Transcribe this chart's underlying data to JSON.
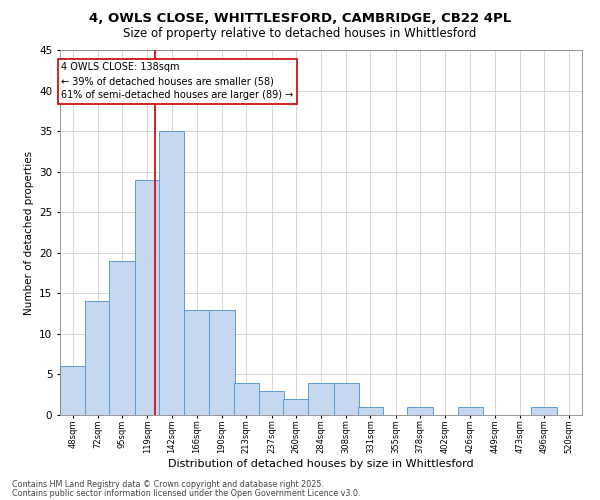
{
  "title1": "4, OWLS CLOSE, WHITTLESFORD, CAMBRIDGE, CB22 4PL",
  "title2": "Size of property relative to detached houses in Whittlesford",
  "xlabel": "Distribution of detached houses by size in Whittlesford",
  "ylabel": "Number of detached properties",
  "footnote1": "Contains HM Land Registry data © Crown copyright and database right 2025.",
  "footnote2": "Contains public sector information licensed under the Open Government Licence v3.0.",
  "annotation_line1": "4 OWLS CLOSE: 138sqm",
  "annotation_line2": "← 39% of detached houses are smaller (58)",
  "annotation_line3": "61% of semi-detached houses are larger (89) →",
  "property_size": 138,
  "bins": [
    48,
    72,
    95,
    119,
    142,
    166,
    190,
    213,
    237,
    260,
    284,
    308,
    331,
    355,
    378,
    402,
    426,
    449,
    473,
    496,
    520
  ],
  "values": [
    6,
    14,
    19,
    29,
    35,
    13,
    13,
    4,
    3,
    2,
    4,
    4,
    1,
    0,
    1,
    0,
    1,
    0,
    0,
    1,
    0
  ],
  "bar_color": "#c5d8f0",
  "bar_edge_color": "#5b9bd5",
  "vline_color": "#cc0000",
  "annotation_box_color": "#cc0000",
  "background_color": "#ffffff",
  "grid_color": "#d0d0d0",
  "ylim": [
    0,
    45
  ],
  "yticks": [
    0,
    5,
    10,
    15,
    20,
    25,
    30,
    35,
    40,
    45
  ]
}
